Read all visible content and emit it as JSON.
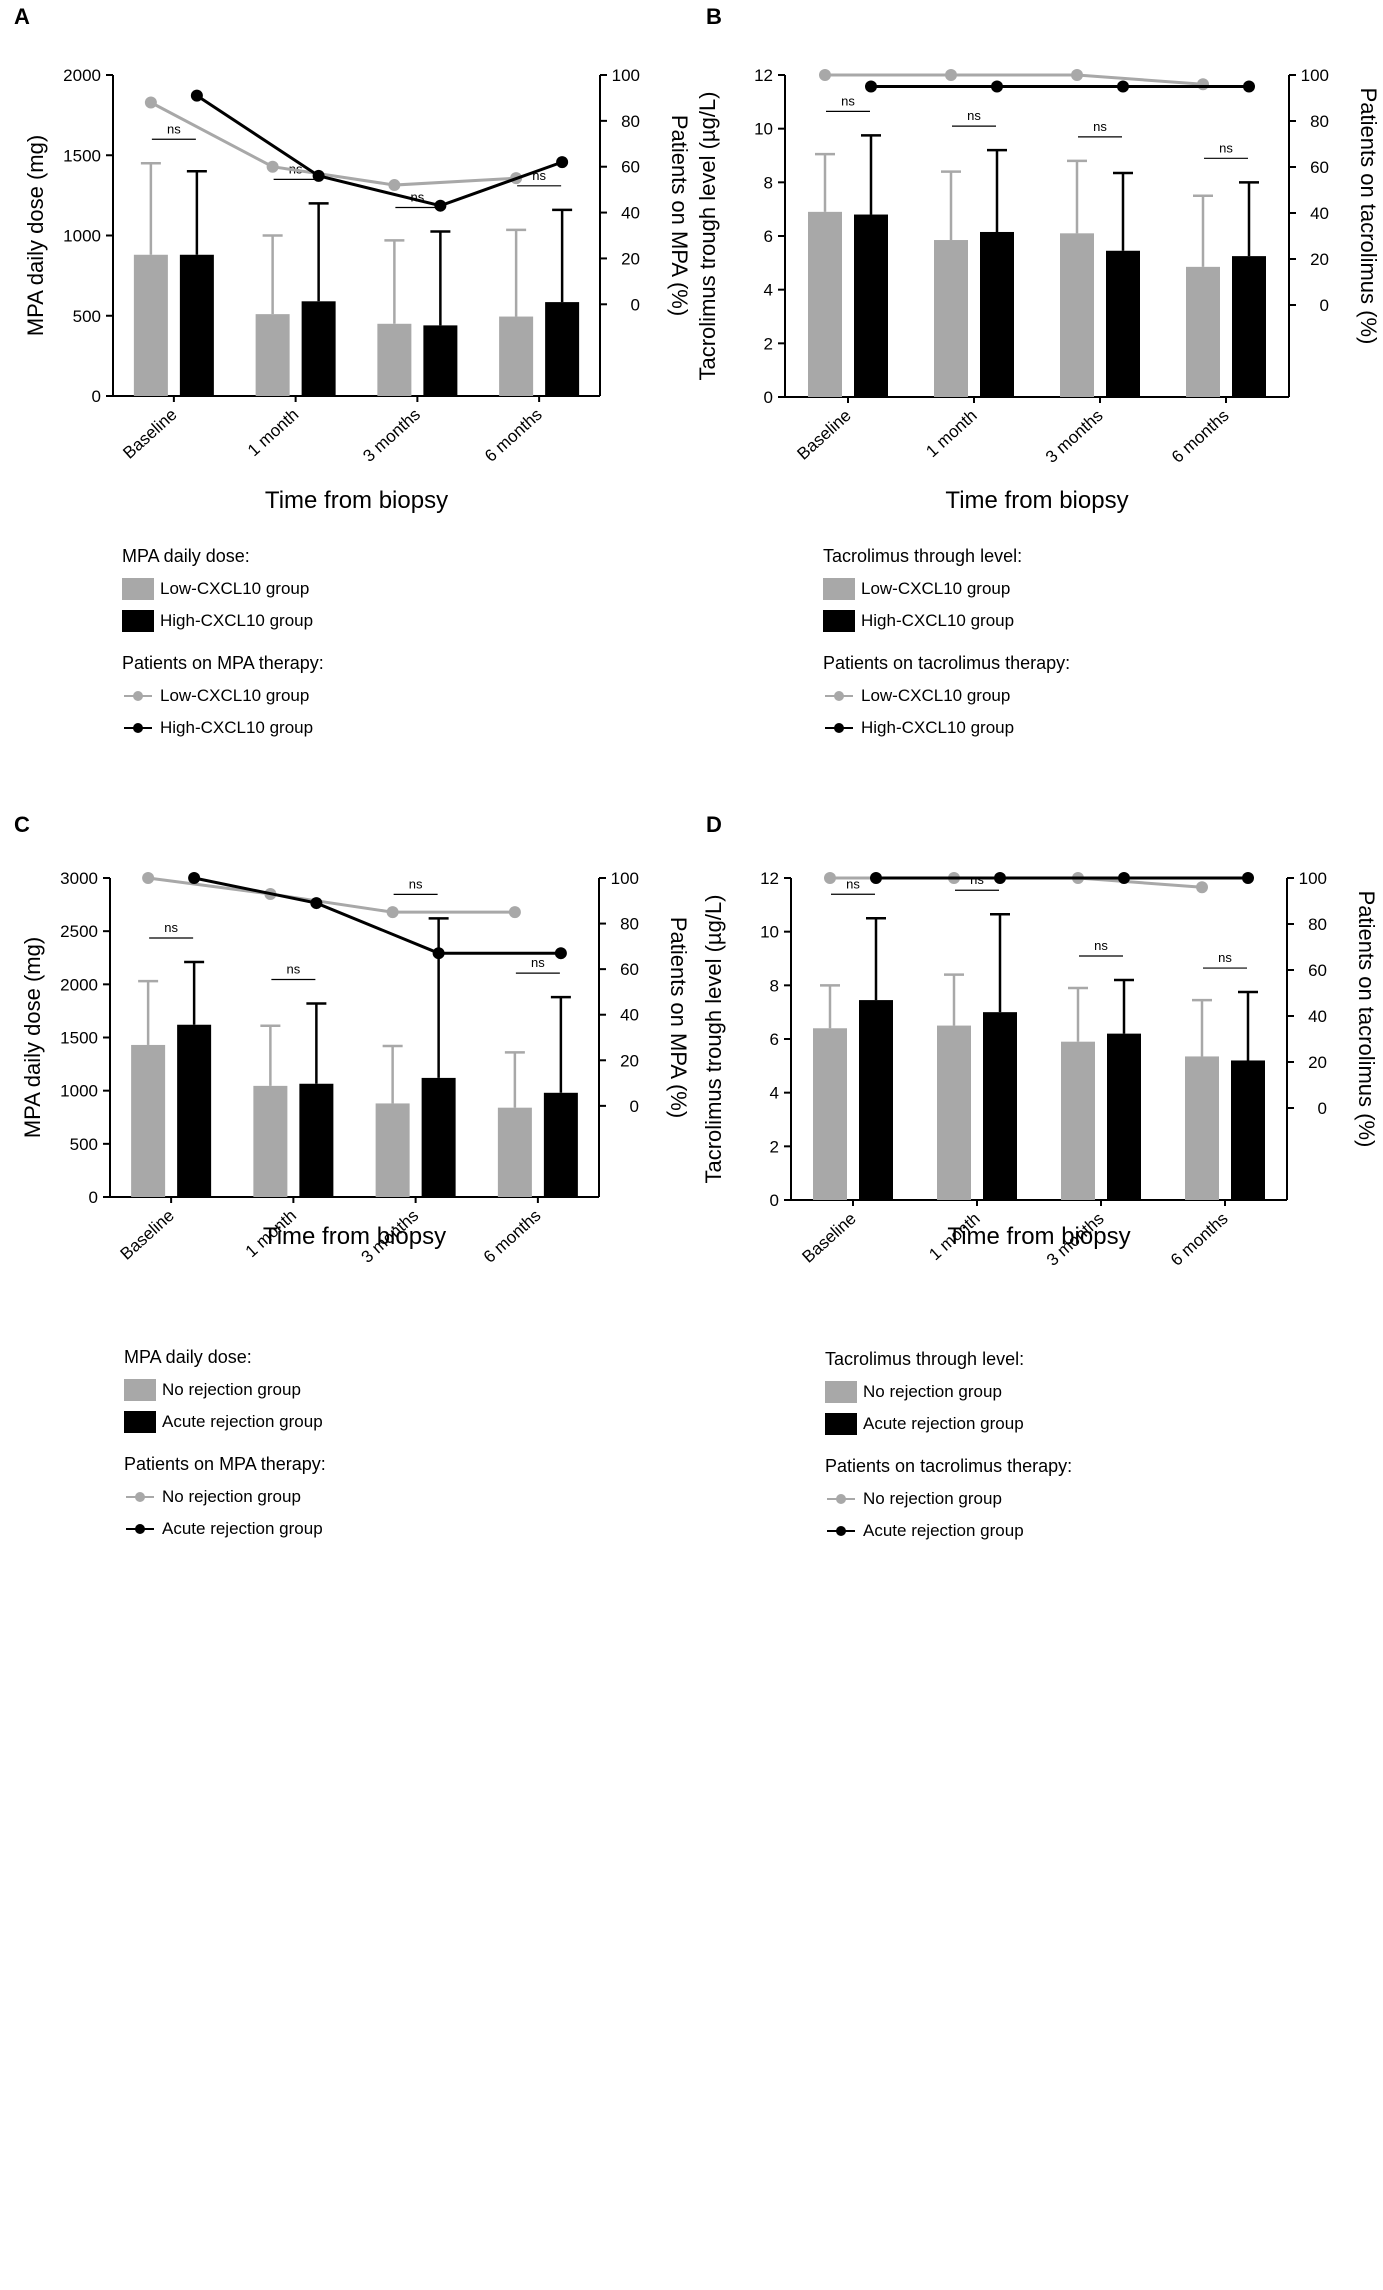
{
  "colors": {
    "low": "#a8a8a8",
    "high": "#000000"
  },
  "chart_data": [
    {
      "id": "A",
      "letter": "A",
      "type": "bar",
      "categories": [
        "Baseline",
        "1 month",
        "3 months",
        "6 months"
      ],
      "xlabel": "Time from biopsy",
      "ylabel": "MPA daily dose (mg)",
      "y2label": "Patients on MPA (%)",
      "ylim": [
        0,
        2000
      ],
      "yticks": [
        0,
        500,
        1000,
        1500,
        2000
      ],
      "y2lim": [
        -40,
        100
      ],
      "y2ticks": [
        0,
        20,
        40,
        60,
        80,
        100
      ],
      "series": [
        {
          "name": "Low-CXCL10 group",
          "color_key": "low",
          "values": [
            880,
            510,
            450,
            495
          ],
          "err": [
            1450,
            1000,
            970,
            1035
          ]
        },
        {
          "name": "High-CXCL10 group",
          "color_key": "high",
          "values": [
            880,
            590,
            440,
            585
          ],
          "err": [
            1400,
            1200,
            1025,
            1160
          ]
        }
      ],
      "lines": [
        {
          "name": "Low-CXCL10 group",
          "color_key": "low",
          "values": [
            88,
            60,
            52,
            55
          ],
          "offset": "low"
        },
        {
          "name": "High-CXCL10 group",
          "color_key": "high",
          "values": [
            91,
            56,
            43,
            62
          ],
          "offset": "high"
        }
      ],
      "significance": [
        "ns",
        "ns",
        "ns",
        "ns"
      ],
      "legend": {
        "bar_title": "MPA daily dose:",
        "bar_items": [
          "Low-CXCL10 group",
          "High-CXCL10 group"
        ],
        "line_title": "Patients on MPA therapy:",
        "line_items": [
          "Low-CXCL10 group",
          "High-CXCL10 group"
        ]
      }
    },
    {
      "id": "B",
      "letter": "B",
      "type": "bar",
      "categories": [
        "Baseline",
        "1 month",
        "3 months",
        "6 months"
      ],
      "xlabel": "Time from biopsy",
      "ylabel": "Tacrolimus trough level (µg/L)",
      "y2label": "Patients on tacrolimus (%)",
      "ylim": [
        0,
        12
      ],
      "yticks": [
        0,
        2,
        4,
        6,
        8,
        10,
        12
      ],
      "y2lim": [
        -40,
        100
      ],
      "y2ticks": [
        0,
        20,
        40,
        60,
        80,
        100
      ],
      "series": [
        {
          "name": "Low-CXCL10 group",
          "color_key": "low",
          "values": [
            6.9,
            5.85,
            6.1,
            4.85
          ],
          "err": [
            9.05,
            8.4,
            8.8,
            7.5
          ]
        },
        {
          "name": "High-CXCL10 group",
          "color_key": "high",
          "values": [
            6.8,
            6.15,
            5.45,
            5.25
          ],
          "err": [
            9.75,
            9.2,
            8.35,
            8.0
          ]
        }
      ],
      "lines": [
        {
          "name": "Low-CXCL10 group",
          "color_key": "low",
          "values": [
            100,
            100,
            100,
            96
          ],
          "offset": "low"
        },
        {
          "name": "High-CXCL10 group",
          "color_key": "high",
          "values": [
            95,
            95,
            95,
            95
          ],
          "offset": "high"
        }
      ],
      "significance": [
        "ns",
        "ns",
        "ns",
        "ns"
      ],
      "legend": {
        "bar_title": "Tacrolimus through level:",
        "bar_items": [
          "Low-CXCL10 group",
          "High-CXCL10 group"
        ],
        "line_title": "Patients on tacrolimus therapy:",
        "line_items": [
          "Low-CXCL10 group",
          "High-CXCL10 group"
        ]
      }
    },
    {
      "id": "C",
      "letter": "C",
      "type": "bar",
      "categories": [
        "Baseline",
        "1 month",
        "3 months",
        "6 months"
      ],
      "xlabel": "Time from biopsy",
      "ylabel": "MPA daily dose (mg)",
      "y2label": "Patients on MPA (%)",
      "ylim": [
        0,
        3000
      ],
      "yticks": [
        0,
        500,
        1000,
        1500,
        2000,
        2500,
        3000
      ],
      "y2lim": [
        -40,
        100
      ],
      "y2ticks": [
        0,
        20,
        40,
        60,
        80,
        100
      ],
      "series": [
        {
          "name": "No rejection group",
          "color_key": "low",
          "values": [
            1430,
            1045,
            880,
            840
          ],
          "err": [
            2030,
            1610,
            1420,
            1360
          ]
        },
        {
          "name": "Acute rejection group",
          "color_key": "high",
          "values": [
            1620,
            1065,
            1120,
            980
          ],
          "err": [
            2210,
            1820,
            2620,
            1880
          ]
        }
      ],
      "lines": [
        {
          "name": "No rejection group",
          "color_key": "low",
          "values": [
            100,
            93,
            85,
            85
          ],
          "offset": "low"
        },
        {
          "name": "Acute rejection group",
          "color_key": "high",
          "values": [
            100,
            89,
            67,
            67
          ],
          "offset": "high"
        }
      ],
      "significance": [
        "ns",
        "ns",
        "ns",
        "ns"
      ],
      "legend": {
        "bar_title": "MPA daily dose:",
        "bar_items": [
          "No rejection group",
          "Acute rejection group"
        ],
        "line_title": "Patients on MPA therapy:",
        "line_items": [
          "No rejection group",
          "Acute rejection group"
        ]
      }
    },
    {
      "id": "D",
      "letter": "D",
      "type": "bar",
      "categories": [
        "Baseline",
        "1 month",
        "3 months",
        "6 months"
      ],
      "xlabel": "Time from biopsy",
      "ylabel": "Tacrolimus trough level (µg/L)",
      "y2label": "Patients on tacrolimus (%)",
      "ylim": [
        0,
        12
      ],
      "yticks": [
        0,
        2,
        4,
        6,
        8,
        10,
        12
      ],
      "y2lim": [
        -40,
        100
      ],
      "y2ticks": [
        0,
        20,
        40,
        60,
        80,
        100
      ],
      "series": [
        {
          "name": "No rejection group",
          "color_key": "low",
          "values": [
            6.4,
            6.5,
            5.9,
            5.35
          ],
          "err": [
            8.0,
            8.4,
            7.9,
            7.45
          ]
        },
        {
          "name": "Acute rejection group",
          "color_key": "high",
          "values": [
            7.45,
            7.0,
            6.2,
            5.2
          ],
          "err": [
            10.5,
            10.65,
            8.2,
            7.75
          ]
        }
      ],
      "lines": [
        {
          "name": "No rejection group",
          "color_key": "low",
          "values": [
            100,
            100,
            100,
            96
          ],
          "offset": "low"
        },
        {
          "name": "Acute rejection group",
          "color_key": "high",
          "values": [
            100,
            100,
            100,
            100
          ],
          "offset": "high"
        }
      ],
      "significance": [
        "ns",
        "ns",
        "ns",
        "ns"
      ],
      "legend": {
        "bar_title": "Tacrolimus through level:",
        "bar_items": [
          "No rejection group",
          "Acute rejection group"
        ],
        "line_title": "Patients on tacrolimus therapy:",
        "line_items": [
          "No rejection group",
          "Acute rejection group"
        ]
      }
    }
  ]
}
